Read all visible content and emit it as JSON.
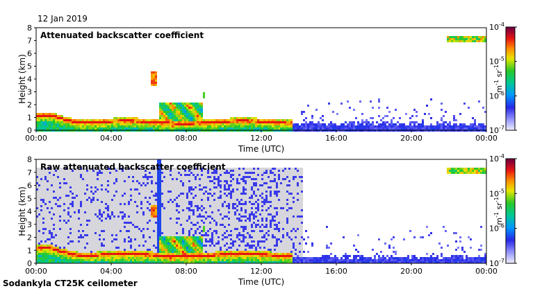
{
  "date_label": "12 Jan 2019",
  "footer": "Sodankyla CT25K ceilometer",
  "chart_data": [
    {
      "type": "heatmap",
      "title": "Attenuated backscatter coefficient",
      "xlabel": "Time (UTC)",
      "ylabel": "Height (km)",
      "xticks": [
        "00:00",
        "04:00",
        "08:00",
        "12:00",
        "16:00",
        "20:00",
        "00:00"
      ],
      "xlim_hours": [
        0,
        24
      ],
      "yticks": [
        0,
        1,
        2,
        3,
        4,
        5,
        6,
        7,
        8
      ],
      "ylim_km": [
        0,
        8
      ],
      "colorbar": {
        "scale": "log",
        "range": [
          1e-07,
          0.0001
        ],
        "tick_labels": [
          "10-7",
          "10-6",
          "10-5",
          "10-4"
        ],
        "units": "m-1 sr-1"
      },
      "features": [
        {
          "name": "boundary layer aerosol",
          "t": [
            0,
            13.5
          ],
          "h_km": [
            0.4,
            1.6
          ],
          "level": "high"
        },
        {
          "name": "elevated cloud",
          "t": [
            6.0,
            6.4
          ],
          "h_km": [
            3.6,
            4.6
          ],
          "level": "high"
        },
        {
          "name": "low cloud",
          "t": [
            6.6,
            8.8
          ],
          "h_km": [
            0,
            2.2
          ],
          "level": "high"
        },
        {
          "name": "upper cloud",
          "t": [
            21.8,
            24
          ],
          "h_km": [
            6.9,
            7.4
          ],
          "level": "high"
        },
        {
          "name": "sparse signal",
          "t": [
            14,
            24
          ],
          "h_km": [
            0,
            3.5
          ],
          "level": "low"
        }
      ]
    },
    {
      "type": "heatmap",
      "title": "Raw attenuated backscatter coefficient",
      "xlabel": "Time (UTC)",
      "ylabel": "Height (km)",
      "xticks": [
        "00:00",
        "04:00",
        "08:00",
        "12:00",
        "16:00",
        "20:00",
        "00:00"
      ],
      "xlim_hours": [
        0,
        24
      ],
      "yticks": [
        0,
        1,
        2,
        3,
        4,
        5,
        6,
        7,
        8
      ],
      "ylim_km": [
        0,
        8
      ],
      "colorbar": {
        "scale": "log",
        "range": [
          1e-07,
          0.0001
        ],
        "tick_labels": [
          "10-7",
          "10-6",
          "10-5",
          "10-4"
        ],
        "units": "m-1 sr-1"
      },
      "features": [
        {
          "name": "background noise",
          "t": [
            0,
            14
          ],
          "h_km": [
            0,
            7.5
          ],
          "level": "noise"
        },
        {
          "name": "boundary layer aerosol",
          "t": [
            0,
            13.5
          ],
          "h_km": [
            0.4,
            1.6
          ],
          "level": "high"
        },
        {
          "name": "elevated cloud",
          "t": [
            6.0,
            6.4
          ],
          "h_km": [
            3.6,
            4.6
          ],
          "level": "high"
        },
        {
          "name": "low cloud",
          "t": [
            6.6,
            8.8
          ],
          "h_km": [
            0,
            2.2
          ],
          "level": "high"
        },
        {
          "name": "upper cloud",
          "t": [
            21.8,
            24
          ],
          "h_km": [
            6.9,
            7.4
          ],
          "level": "high"
        }
      ]
    }
  ]
}
